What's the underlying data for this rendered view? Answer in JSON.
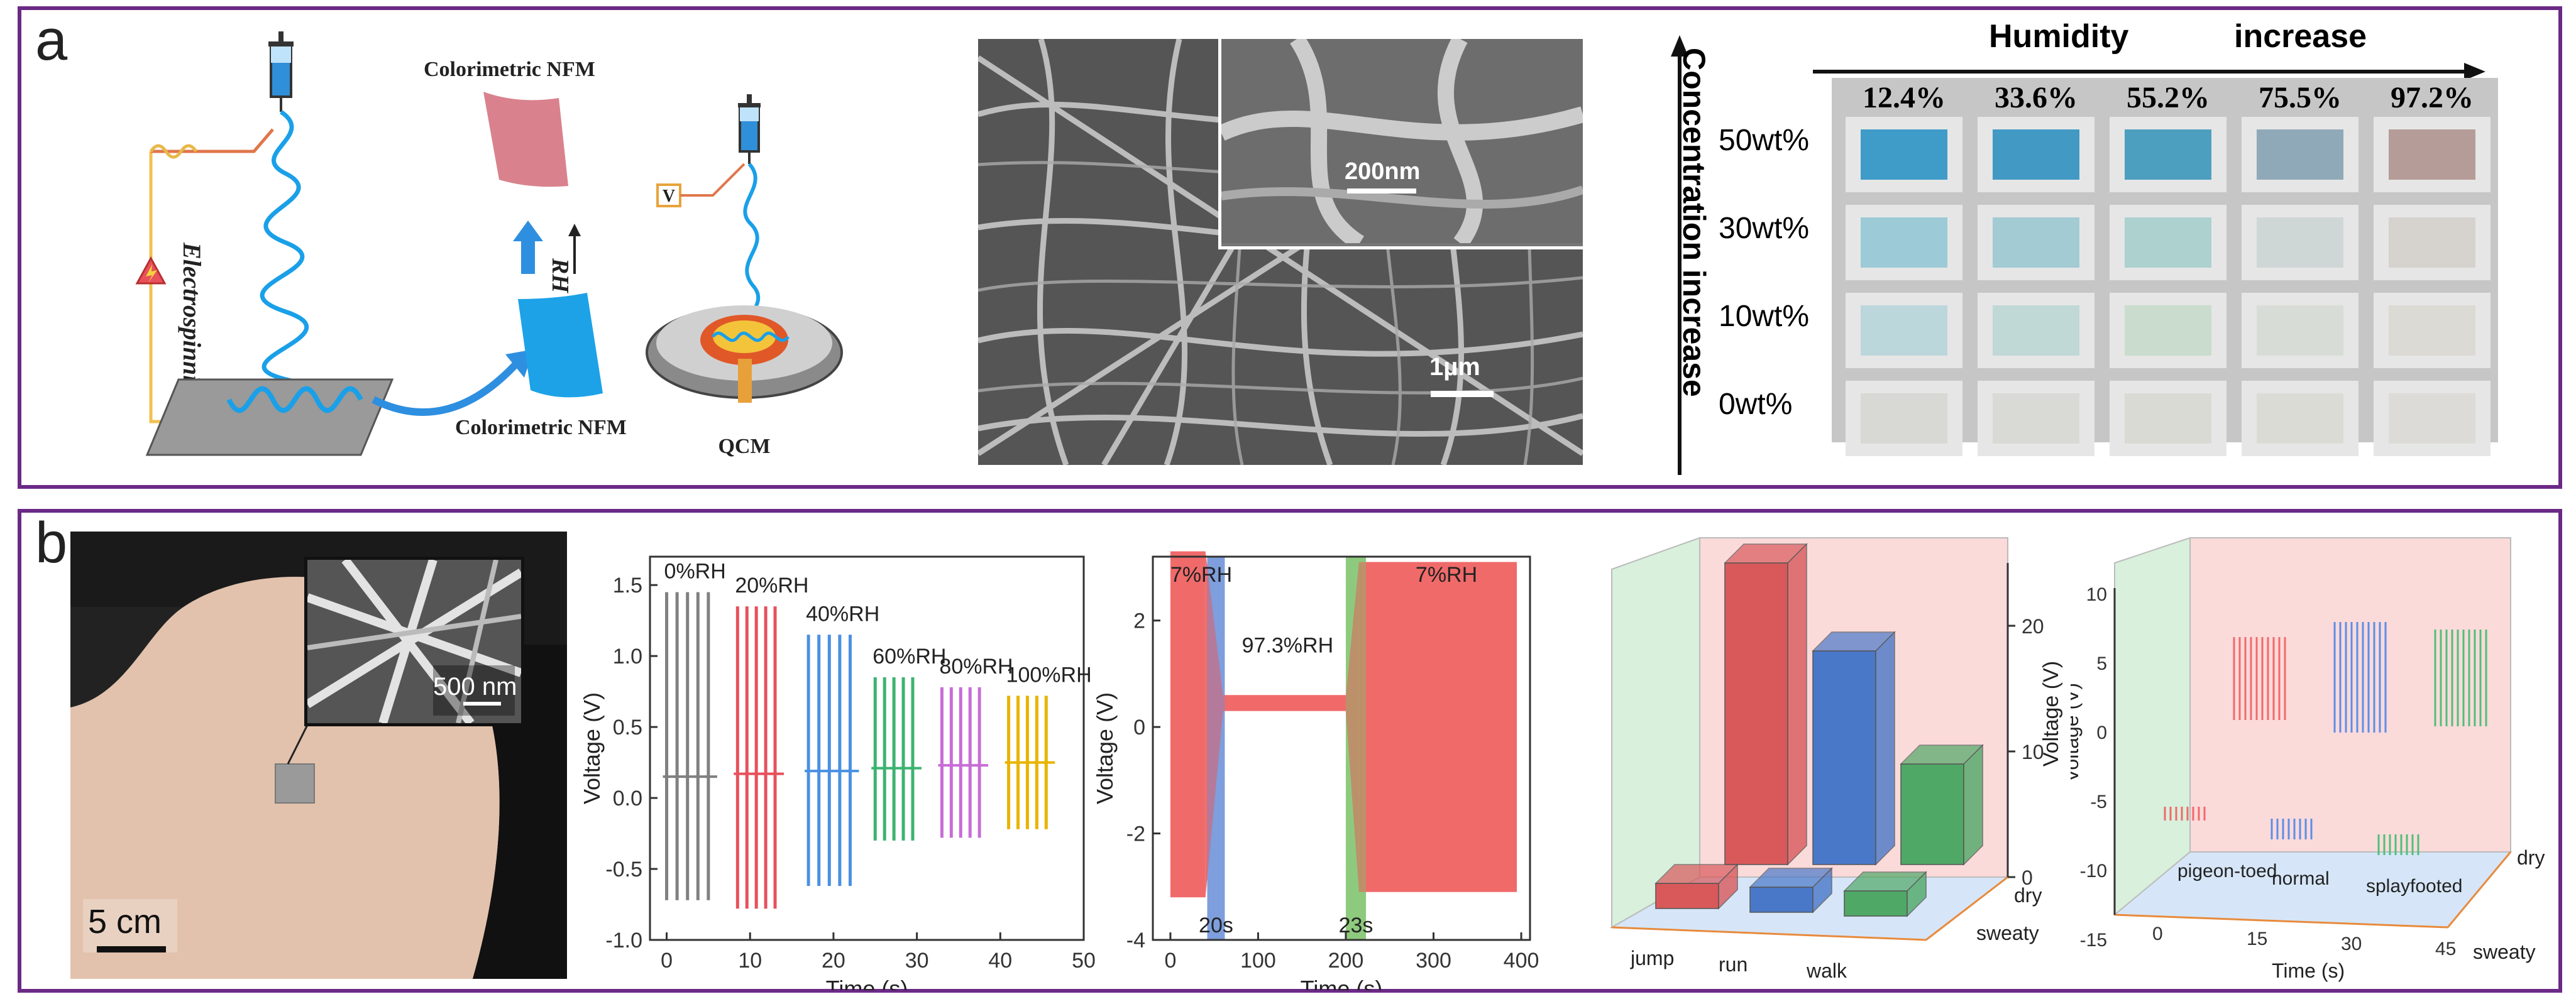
{
  "panel_a": {
    "label": "a",
    "schematic": {
      "electrospinning": "Electrospinning",
      "nfm_top": "Colorimetric NFM",
      "nfm_bottom": "Colorimetric NFM",
      "rh": "RH",
      "voltage": "V",
      "qcm": "QCM"
    },
    "sem": {
      "inset_scale": "200nm",
      "main_scale": "1µm"
    },
    "color_chart": {
      "x_title_left": "Humidity",
      "x_title_right": "increase",
      "y_title": "Concentration increase",
      "humidity": [
        "12.4%",
        "33.6%",
        "55.2%",
        "75.5%",
        "97.2%"
      ],
      "concentrations": [
        "50wt%",
        "30wt%",
        "10wt%",
        "0wt%"
      ],
      "swatch_colors": [
        [
          "#3f9bc8",
          "#4199c4",
          "#4d9fbf",
          "#8fa9b9",
          "#b59c98"
        ],
        [
          "#9ccad6",
          "#a2cbd3",
          "#acd1cf",
          "#cfd7d6",
          "#d6d2ce"
        ],
        [
          "#bcd7dc",
          "#c0d8d6",
          "#c9dccd",
          "#d8dcd6",
          "#dcdad4"
        ],
        [
          "#d8d8d4",
          "#d9d9d5",
          "#dadad5",
          "#dbdbd6",
          "#dcdbd7"
        ]
      ]
    }
  },
  "panel_b": {
    "label": "b",
    "photo": {
      "inset_scale": "500 nm",
      "scale": "5 cm"
    }
  },
  "chart_data": [
    {
      "type": "line",
      "xlabel": "Time (s)",
      "ylabel": "Voltage (V)",
      "xlim": [
        -2,
        50
      ],
      "ylim": [
        -1.0,
        1.7
      ],
      "xticks": [
        0,
        10,
        20,
        30,
        40,
        50
      ],
      "yticks": [
        -1.0,
        -0.5,
        0.0,
        0.5,
        1.0,
        1.5
      ],
      "series": [
        {
          "name": "0%RH",
          "color": "#808080",
          "t_start": 0,
          "t_end": 5,
          "vmax": 1.45,
          "vmin": -0.72
        },
        {
          "name": "20%RH",
          "color": "#e8505b",
          "t_start": 8.5,
          "t_end": 13,
          "vmax": 1.35,
          "vmin": -0.78
        },
        {
          "name": "40%RH",
          "color": "#4a90e2",
          "t_start": 17,
          "t_end": 22,
          "vmax": 1.15,
          "vmin": -0.62
        },
        {
          "name": "60%RH",
          "color": "#3cb371",
          "t_start": 25,
          "t_end": 29.5,
          "vmax": 0.85,
          "vmin": -0.3
        },
        {
          "name": "80%RH",
          "color": "#c86dd7",
          "t_start": 33,
          "t_end": 37.5,
          "vmax": 0.78,
          "vmin": -0.28
        },
        {
          "name": "100%RH",
          "color": "#e8b400",
          "t_start": 41,
          "t_end": 45.5,
          "vmax": 0.72,
          "vmin": -0.22
        }
      ]
    },
    {
      "type": "area",
      "xlabel": "Time (s)",
      "ylabel": "Voltage (V)",
      "xlim": [
        -20,
        410
      ],
      "ylim": [
        -4,
        3.2
      ],
      "xticks": [
        0,
        100,
        200,
        300,
        400
      ],
      "yticks": [
        -4,
        -2,
        0,
        2
      ],
      "color": "#f06a6a",
      "segments": [
        {
          "label": "7%RH",
          "from": 0,
          "to": 40,
          "vmax": 3.3,
          "vmin": -3.2
        },
        {
          "label": "97.3%RH",
          "from": 60,
          "to": 200,
          "vmax": 0.6,
          "vmin": 0.3
        },
        {
          "label": "7%RH",
          "from": 215,
          "to": 395,
          "vmax": 3.1,
          "vmin": -3.1
        }
      ],
      "annotations": [
        {
          "text": "20s",
          "band_from": 42,
          "band_to": 62,
          "band_color": "#6a8fd8"
        },
        {
          "text": "23s",
          "band_from": 200,
          "band_to": 223,
          "band_color": "#7cc26a"
        }
      ]
    },
    {
      "type": "bar",
      "title": "",
      "categories": [
        "jump",
        "run",
        "walk"
      ],
      "series": [
        {
          "name": "dry",
          "values": [
            24,
            17,
            8
          ]
        },
        {
          "name": "sweaty",
          "values": [
            2,
            2,
            2
          ]
        }
      ],
      "colors": [
        "#d9595b",
        "#4a78c8",
        "#4fa866"
      ],
      "zlabel": "Voltage (V)",
      "zticks": [
        0,
        10,
        20
      ],
      "depth_labels": [
        "dry",
        "sweaty"
      ]
    },
    {
      "type": "line",
      "zlabel": "Voltage (V)",
      "xlabel": "Time (s)",
      "xticks": [
        0,
        15,
        30,
        45
      ],
      "zticks": [
        -15,
        -10,
        -5,
        0,
        5,
        10
      ],
      "depth_labels": [
        "dry",
        "sweaty"
      ],
      "series": [
        {
          "name": "pigeon-toed",
          "color": "#f06a6a",
          "dry_amp": 6,
          "sweaty_amp": 1
        },
        {
          "name": "normal",
          "color": "#5b8fe6",
          "dry_amp": 8,
          "sweaty_amp": 1.5
        },
        {
          "name": "splayfooted",
          "color": "#4fc07a",
          "dry_amp": 7,
          "sweaty_amp": 1.5
        }
      ]
    }
  ]
}
